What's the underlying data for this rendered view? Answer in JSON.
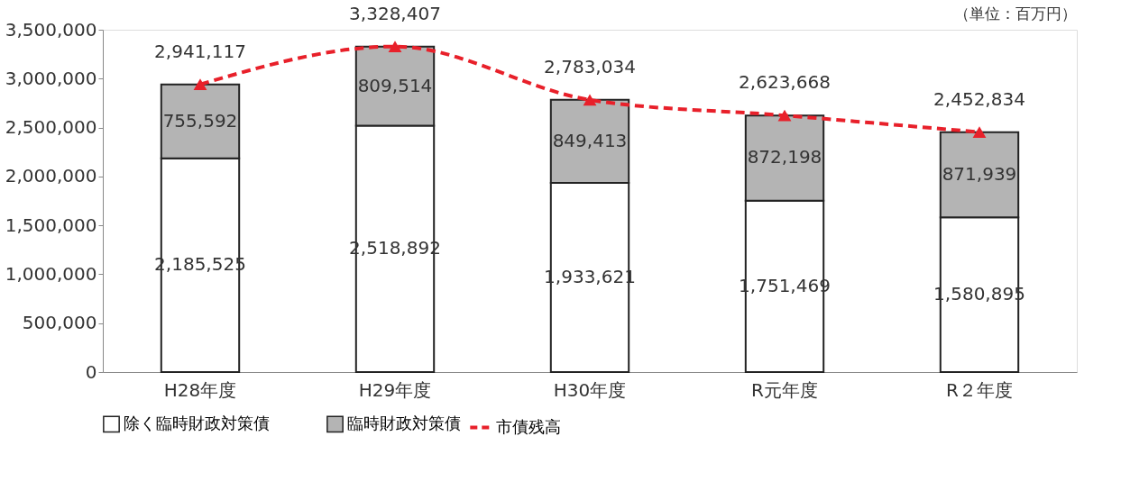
{
  "chart_data": {
    "type": "bar",
    "stacked": true,
    "categories": [
      "H28年度",
      "H29年度",
      "H30年度",
      "R元年度",
      "R２年度"
    ],
    "series": [
      {
        "name": "除く臨時財政対策債",
        "color": "#ffffff",
        "values": [
          2185525,
          2518892,
          1933621,
          1751469,
          1580895
        ],
        "value_labels": [
          "2,185,525",
          "2,518,892",
          "1,933,621",
          "1,751,469",
          "1,580,895"
        ]
      },
      {
        "name": "臨時財政対策債",
        "color": "#b4b4b4",
        "values": [
          755592,
          809514,
          849413,
          872198,
          871939
        ],
        "value_labels": [
          "755,592",
          "809,514",
          "849,413",
          "872,198",
          "871,939"
        ]
      },
      {
        "name": "市債残高",
        "type": "line",
        "color": "#e8202a",
        "marker": "triangle",
        "line_style": "dashed",
        "values": [
          2941117,
          3328407,
          2783034,
          2623668,
          2452834
        ],
        "value_labels": [
          "2,941,117",
          "3,328,407",
          "2,783,034",
          "2,623,668",
          "2,452,834"
        ]
      }
    ],
    "ylim": [
      0,
      3500000
    ],
    "yticks": [
      0,
      {
        "value": 500000,
        "label": "500,000"
      },
      {
        "value": 1000000,
        "label": "1,000,000"
      },
      {
        "value": 1500000,
        "label": "1,500,000"
      },
      {
        "value": 2000000,
        "label": "2,000,000"
      },
      {
        "value": 2500000,
        "label": "2,500,000"
      },
      {
        "value": 3000000,
        "label": "3,000,000"
      },
      {
        "value": 3500000,
        "label": "3,500,000"
      }
    ],
    "grid": false,
    "legend": "bottom",
    "annotations": [
      "（単位：百万円）"
    ]
  }
}
